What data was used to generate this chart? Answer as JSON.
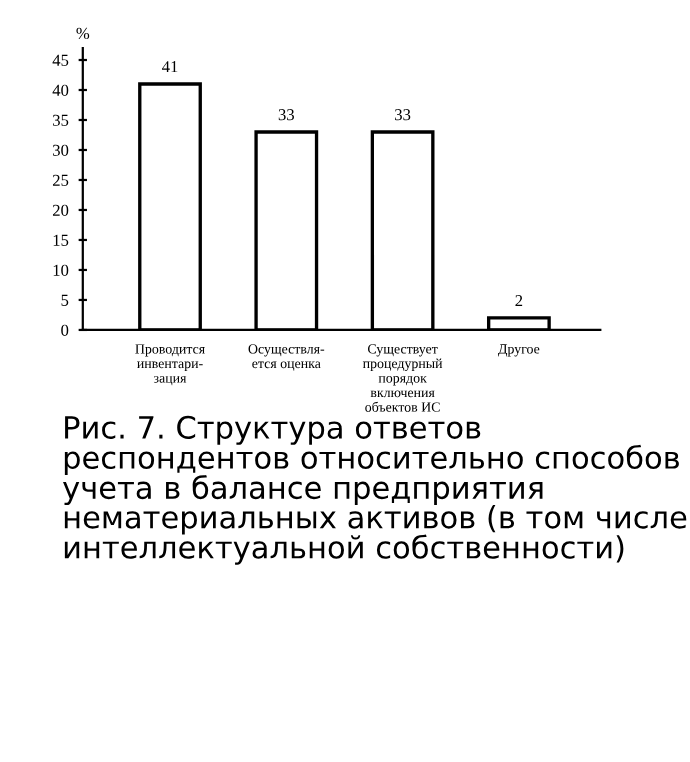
{
  "chart_data": {
    "type": "bar",
    "title": "Рис. 7. Структура ответов респондентов относительно способов учета в балансе предприятия нематериальных активов (в том числе интеллектуальной собственности)",
    "ylabel": "%",
    "categories": [
      "Проводится\nинвентари-\nзация",
      "Осуществля-\nется оценка",
      "Существует\nпроцедурный\nпорядок\nвключения\nобъектов ИС",
      "Другое"
    ],
    "values": [
      41,
      33,
      33,
      2
    ],
    "color": "#ffffff",
    "ylim": [
      0,
      47
    ],
    "yticks": [
      0,
      5,
      10,
      15,
      20,
      25,
      30,
      35,
      40,
      45
    ],
    "grid": false,
    "data_labels": true
  }
}
